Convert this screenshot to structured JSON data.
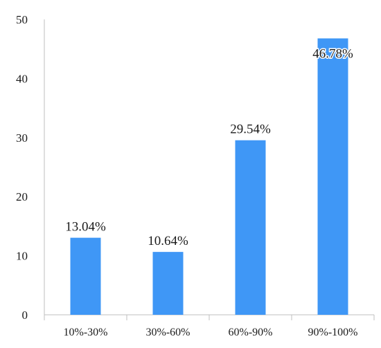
{
  "chart_data": {
    "type": "bar",
    "categories": [
      "10%-30%",
      "30%-60%",
      "60%-90%",
      "90%-100%"
    ],
    "values": [
      13.04,
      10.64,
      29.54,
      46.78
    ],
    "data_labels": [
      "13.04%",
      "10.64%",
      "29.54%",
      "46.78%"
    ],
    "title": "",
    "xlabel": "",
    "ylabel": "",
    "ylim": [
      0,
      50
    ],
    "yticks": [
      0,
      10,
      20,
      30,
      40,
      50
    ],
    "grid": false,
    "legend": "none",
    "colors": {
      "bar": "#3f97f6",
      "axis": "#bfbfbf"
    }
  }
}
